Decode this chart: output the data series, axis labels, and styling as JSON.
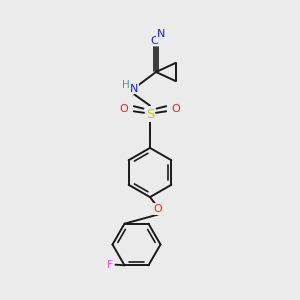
{
  "background_color": "#ebebeb",
  "figsize": [
    3.0,
    3.0
  ],
  "dpi": 100,
  "bond_color": "#1a1a1a",
  "bond_width": 1.4,
  "atom_colors": {
    "N": "#1919ff",
    "O": "#ff1919",
    "S": "#cccc00",
    "F": "#ff44ff",
    "C_cn": "#1919cc",
    "H": "#4d9999"
  },
  "scale": 1.0
}
